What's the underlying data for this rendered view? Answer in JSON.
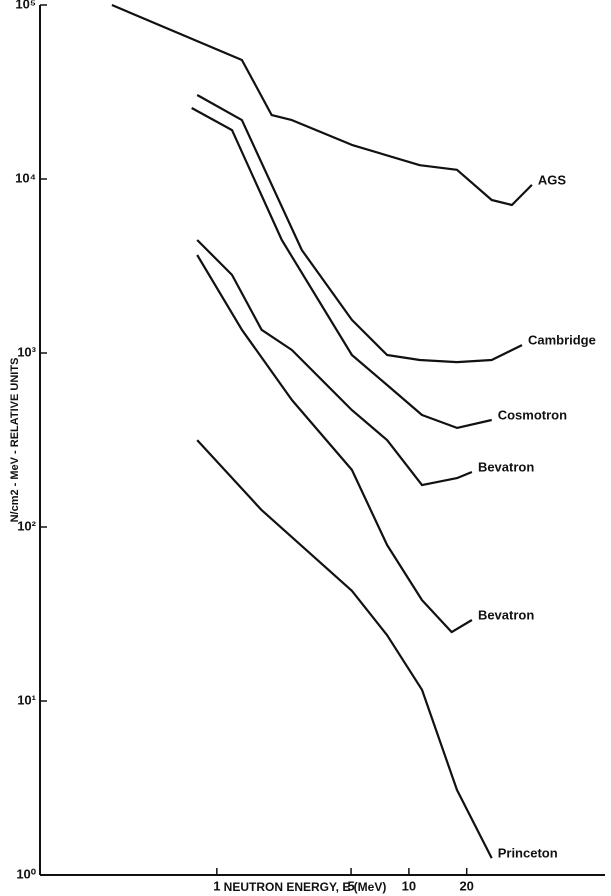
{
  "chart_data": {
    "type": "line",
    "xlabel": "NEUTRON ENERGY, E (MeV)",
    "ylabel": "N/cm2 - MeV - RELATIVE UNITS",
    "xscale": "log",
    "yscale": "log",
    "grid": false,
    "color": "#111111",
    "xlim": [
      0.12,
      105
    ],
    "ylim": [
      1,
      100000
    ],
    "xticks": [
      1,
      5,
      10,
      20
    ],
    "yticks": [
      {
        "value": 1,
        "label": "10⁰"
      },
      {
        "value": 10,
        "label": "10¹"
      },
      {
        "value": 100,
        "label": "10²"
      },
      {
        "value": 1000,
        "label": "10³"
      },
      {
        "value": 10000,
        "label": "10⁴"
      },
      {
        "value": 100000,
        "label": "10⁵"
      }
    ],
    "series": [
      {
        "name": "AGS",
        "x": [
          0.284,
          1.35,
          1.93,
          2.46,
          5.05,
          11.4,
          17.8,
          27,
          34.4,
          43.7
        ],
        "values": [
          100000,
          48300,
          23300,
          21800,
          15700,
          12000,
          11300,
          7570,
          7090,
          9250
        ]
      },
      {
        "name": "Cambridge",
        "x": [
          0.79,
          1.35,
          2.77,
          5.05,
          7.7,
          11.4,
          17.8,
          27,
          38.8
        ],
        "values": [
          30400,
          21800,
          3910,
          1550,
          974,
          912,
          887,
          912,
          1110
        ]
      },
      {
        "name": "Cosmotron",
        "x": [
          0.74,
          1.2,
          2.18,
          5.05,
          7.7,
          11.7,
          17.8,
          27
        ],
        "values": [
          25600,
          19100,
          4460,
          974,
          655,
          440,
          371,
          412
        ]
      },
      {
        "name": "Bevatron",
        "x": [
          0.79,
          1.2,
          1.71,
          2.46,
          5.05,
          7.7,
          11.7,
          17.8,
          21.3
        ],
        "values": [
          4460,
          2810,
          1360,
          1040,
          470,
          316,
          174,
          191,
          207
        ]
      },
      {
        "name": "Bevatron",
        "x": [
          0.79,
          1.35,
          2.46,
          5.05,
          7.7,
          11.7,
          16.7,
          21.3
        ],
        "values": [
          3660,
          1360,
          537,
          213,
          78.8,
          38,
          24.9,
          29.2
        ]
      },
      {
        "name": "Princeton",
        "x": [
          0.79,
          1.71,
          5.05,
          7.7,
          11.7,
          17.8,
          27
        ],
        "values": [
          316,
          125,
          43,
          23.9,
          11.6,
          3.08,
          1.25
        ]
      }
    ]
  }
}
